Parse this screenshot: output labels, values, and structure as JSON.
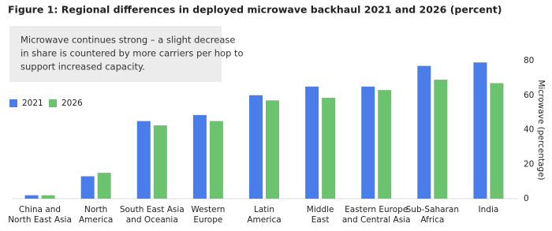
{
  "chart_data": {
    "type": "bar",
    "title": "Figure 1: Regional differences in deployed microwave backhaul 2021 and 2026 (percent)",
    "annotation": [
      "Microwave continues strong – a slight decrease",
      "in share is countered by more carriers per hop to",
      "support increased capacity."
    ],
    "y_label": "Microwave (percentage)",
    "categories": [
      "China and\nNorth East Asia",
      "North\nAmerica",
      "South East Asia\nand Oceania",
      "Western\nEurope",
      "Latin\nAmerica",
      "Middle\nEast",
      "Eastern Europe\nand Central Asia",
      "Sub-Saharan\nAfrica",
      "India"
    ],
    "series": [
      {
        "name": "2021",
        "color": "#4a7de9",
        "values": [
          2,
          13,
          45,
          48.5,
          60,
          65,
          65,
          77,
          79
        ]
      },
      {
        "name": "2026",
        "color": "#6cc36f",
        "values": [
          2,
          15,
          42.5,
          45,
          57,
          58.5,
          63,
          69,
          67
        ]
      }
    ],
    "ylim": [
      0,
      80
    ],
    "yticks": [
      0,
      20,
      40,
      60,
      80
    ],
    "grid": false
  }
}
